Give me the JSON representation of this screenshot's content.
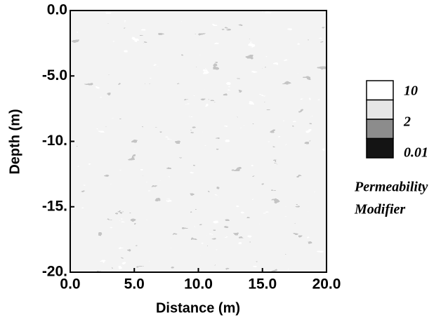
{
  "chart_data": {
    "type": "heatmap",
    "x_label": "Distance (m)",
    "y_label": "Depth (m)",
    "xlim": [
      0,
      20
    ],
    "ylim": [
      -20,
      0
    ],
    "xticks": [
      {
        "value": 0,
        "label": "0.0"
      },
      {
        "value": 5,
        "label": "5.0"
      },
      {
        "value": 10,
        "label": "10.0"
      },
      {
        "value": 15,
        "label": "15.0"
      },
      {
        "value": 20,
        "label": "20.0"
      }
    ],
    "yticks": [
      {
        "value": 0,
        "label": "0.0"
      },
      {
        "value": -5,
        "label": "-5.0"
      },
      {
        "value": -10,
        "label": "-10."
      },
      {
        "value": -15,
        "label": "-15."
      },
      {
        "value": -20,
        "label": "-20."
      }
    ],
    "legend": {
      "title": [
        "Permeability",
        "Modifier"
      ],
      "labels": [
        "10",
        "2",
        "0.01"
      ],
      "colors": [
        "#ffffff",
        "#e6e6e6",
        "#8c8c8c",
        "#141414"
      ]
    }
  }
}
